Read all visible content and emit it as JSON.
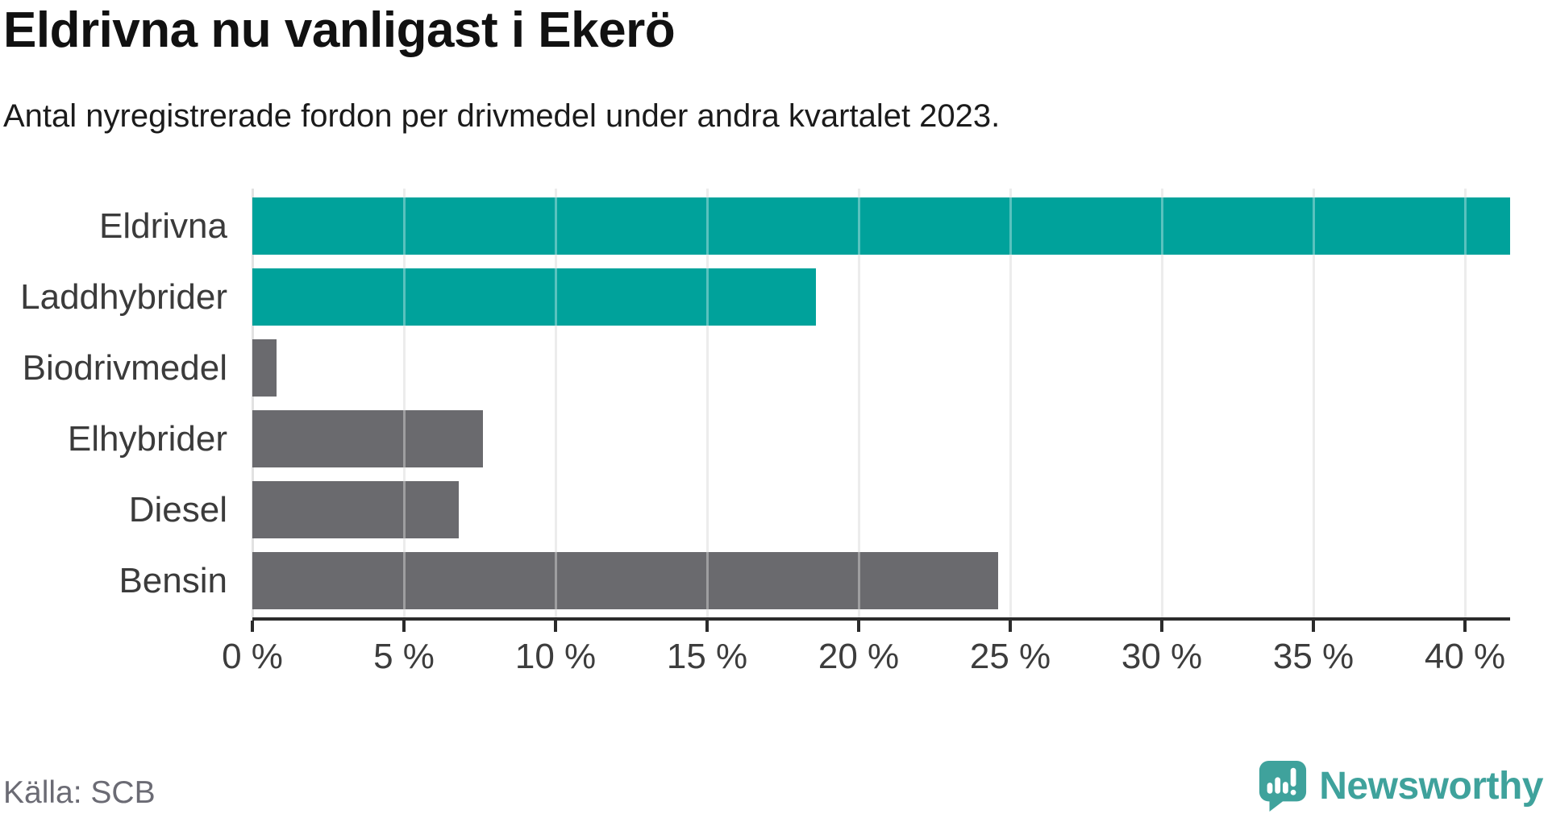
{
  "header": {
    "title": "Eldrivna nu vanligast i Ekerö",
    "subtitle": "Antal nyregistrerade fordon per drivmedel under andra kvartalet 2023."
  },
  "footer": {
    "source": "Källa: SCB",
    "brand": "Newsworthy"
  },
  "colors": {
    "highlight_teal": "#00a29b",
    "neutral_gray": "#6a6a6e",
    "brand_teal": "#3fa29c"
  },
  "chart_data": {
    "type": "bar",
    "orientation": "horizontal",
    "title": "Eldrivna nu vanligast i Ekerö",
    "subtitle": "Antal nyregistrerade fordon per drivmedel under andra kvartalet 2023.",
    "categories": [
      "Eldrivna",
      "Laddhybrider",
      "Biodrivmedel",
      "Elhybrider",
      "Diesel",
      "Bensin"
    ],
    "values": [
      41.5,
      18.6,
      0.8,
      7.6,
      6.8,
      24.6
    ],
    "unit": "%",
    "bar_colors": [
      "#00a29b",
      "#00a29b",
      "#6a6a6e",
      "#6a6a6e",
      "#6a6a6e",
      "#6a6a6e"
    ],
    "xlabel": "",
    "ylabel": "",
    "xlim": [
      0,
      41.5
    ],
    "x_tick_values": [
      0,
      5,
      10,
      15,
      20,
      25,
      30,
      35,
      40
    ],
    "x_tick_labels": [
      "0 %",
      "5 %",
      "10 %",
      "15 %",
      "20 %",
      "25 %",
      "30 %",
      "35 %",
      "40 %"
    ],
    "grid": "vertical",
    "legend": "none"
  }
}
